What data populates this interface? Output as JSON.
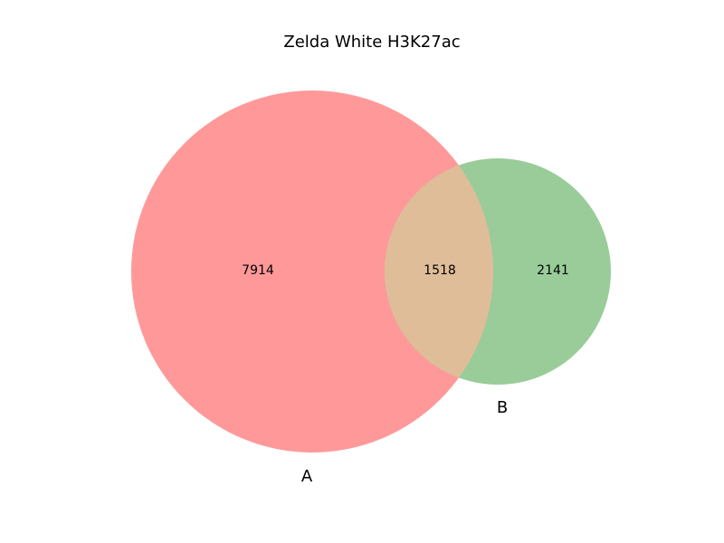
{
  "chart_data": {
    "type": "venn",
    "title": "Zelda White H3K27ac",
    "sets": [
      {
        "name": "A",
        "only": 7914,
        "color": "#ff9999"
      },
      {
        "name": "B",
        "only": 2141,
        "color": "#99cc99"
      }
    ],
    "intersection": 1518,
    "intersection_color": "#e0bd99"
  }
}
